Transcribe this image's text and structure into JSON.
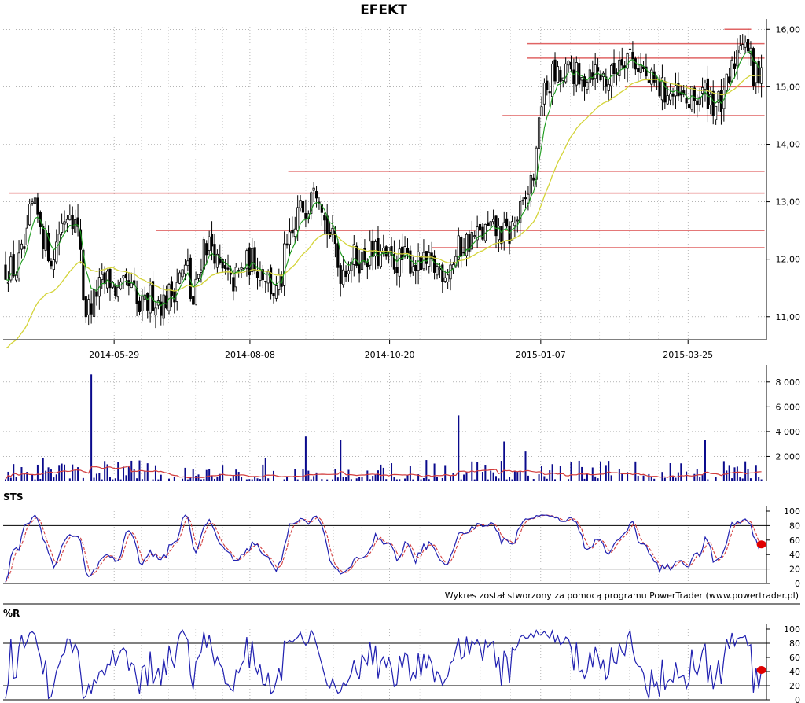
{
  "title": "EFEKT",
  "credit": "Wykres został stworzony za pomocą programu PowerTrader (www.powertrader.pl)",
  "colors": {
    "candle": "#000000",
    "ma_short": "#1a9a1a",
    "ma_long": "#d4d43a",
    "support_resistance": "#e06464",
    "volume_bar": "#0a0a8c",
    "volume_avg": "#d23c3c",
    "sts_k": "#2020b0",
    "sts_d": "#d23c3c",
    "williams": "#2020b0",
    "marker": "#e00000",
    "grid": "#888888"
  },
  "chart_data": [
    {
      "id": "price",
      "type": "candlestick",
      "title": "EFEKT",
      "x_tick_labels": [
        "2014-05-29",
        "2014-08-08",
        "2014-10-20",
        "2015-01-07",
        "2015-03-25"
      ],
      "y_tick_labels": [
        "11,00",
        "12,00",
        "13,00",
        "14,00",
        "15,00",
        "16,00"
      ],
      "ylim": [
        10.6,
        16.1
      ],
      "grid": true,
      "horizontal_levels": [
        {
          "value": 16.0,
          "from": "2015-04-13",
          "to": "2015-04-27"
        },
        {
          "value": 15.75,
          "from": "2014-12-31",
          "to": "2015-05-04"
        },
        {
          "value": 15.5,
          "from": "2014-12-31",
          "to": "2015-05-04"
        },
        {
          "value": 15.0,
          "from": "2015-02-20",
          "to": "2015-05-04"
        },
        {
          "value": 14.5,
          "from": "2014-12-18",
          "to": "2015-05-04"
        },
        {
          "value": 13.53,
          "from": "2014-08-28",
          "to": "2015-05-04"
        },
        {
          "value": 13.15,
          "from": "2014-04-04",
          "to": "2015-05-04"
        },
        {
          "value": 12.5,
          "from": "2014-06-20",
          "to": "2015-05-04"
        },
        {
          "value": 12.2,
          "from": "2014-11-11",
          "to": "2015-05-04"
        }
      ],
      "close_series": [
        [
          "2014-04-01",
          11.85
        ],
        [
          "2014-04-07",
          11.8
        ],
        [
          "2014-04-11",
          12.3
        ],
        [
          "2014-04-15",
          12.9
        ],
        [
          "2014-04-21",
          12.4
        ],
        [
          "2014-04-25",
          11.95
        ],
        [
          "2014-05-01",
          12.75
        ],
        [
          "2014-05-05",
          12.95
        ],
        [
          "2014-05-09",
          12.25
        ],
        [
          "2014-05-13",
          11.1
        ],
        [
          "2014-05-19",
          11.45
        ],
        [
          "2014-05-25",
          11.7
        ],
        [
          "2014-05-29",
          11.4
        ],
        [
          "2014-06-04",
          11.5
        ],
        [
          "2014-06-10",
          11.1
        ],
        [
          "2014-06-16",
          11.35
        ],
        [
          "2014-06-22",
          11.2
        ],
        [
          "2014-06-28",
          11.55
        ],
        [
          "2014-07-04",
          11.85
        ],
        [
          "2014-07-08",
          11.2
        ],
        [
          "2014-07-12",
          12.3
        ],
        [
          "2014-07-17",
          12.25
        ],
        [
          "2014-07-22",
          11.8
        ],
        [
          "2014-07-28",
          11.55
        ],
        [
          "2014-08-02",
          11.85
        ],
        [
          "2014-08-08",
          12.0
        ],
        [
          "2014-08-14",
          11.75
        ],
        [
          "2014-08-20",
          11.4
        ],
        [
          "2014-08-26",
          12.15
        ],
        [
          "2014-08-31",
          12.75
        ],
        [
          "2014-09-05",
          13.0
        ],
        [
          "2014-09-09",
          13.45
        ],
        [
          "2014-09-13",
          12.9
        ],
        [
          "2014-09-18",
          12.3
        ],
        [
          "2014-09-23",
          11.8
        ],
        [
          "2014-09-28",
          12.05
        ],
        [
          "2014-10-03",
          12.0
        ],
        [
          "2014-10-08",
          12.1
        ],
        [
          "2014-10-13",
          12.05
        ],
        [
          "2014-10-20",
          11.95
        ],
        [
          "2014-10-27",
          12.0
        ],
        [
          "2014-11-03",
          11.9
        ],
        [
          "2014-11-10",
          11.85
        ],
        [
          "2014-11-17",
          11.8
        ],
        [
          "2014-11-22",
          12.1
        ],
        [
          "2014-11-27",
          12.3
        ],
        [
          "2014-12-03",
          12.4
        ],
        [
          "2014-12-09",
          12.5
        ],
        [
          "2014-12-15",
          12.45
        ],
        [
          "2014-12-20",
          12.4
        ],
        [
          "2014-12-25",
          12.8
        ],
        [
          "2014-12-29",
          13.0
        ],
        [
          "2015-01-02",
          13.7
        ],
        [
          "2015-01-05",
          14.6
        ],
        [
          "2015-01-08",
          15.0
        ],
        [
          "2015-01-12",
          15.2
        ],
        [
          "2015-01-16",
          15.1
        ],
        [
          "2015-01-21",
          15.3
        ],
        [
          "2015-01-26",
          15.0
        ],
        [
          "2015-01-31",
          15.4
        ],
        [
          "2015-02-05",
          15.2
        ],
        [
          "2015-02-10",
          15.1
        ],
        [
          "2015-02-15",
          15.5
        ],
        [
          "2015-02-20",
          15.6
        ],
        [
          "2015-02-25",
          15.4
        ],
        [
          "2015-03-02",
          15.1
        ],
        [
          "2015-03-07",
          15.0
        ],
        [
          "2015-03-12",
          14.9
        ],
        [
          "2015-03-17",
          14.8
        ],
        [
          "2015-03-22",
          14.7
        ],
        [
          "2015-03-27",
          14.8
        ],
        [
          "2015-04-01",
          14.9
        ],
        [
          "2015-04-06",
          14.7
        ],
        [
          "2015-04-10",
          14.7
        ],
        [
          "2015-04-14",
          15.1
        ],
        [
          "2015-04-18",
          15.8
        ],
        [
          "2015-04-22",
          15.9
        ],
        [
          "2015-04-26",
          15.0
        ],
        [
          "2015-04-30",
          15.4
        ]
      ]
    },
    {
      "id": "volume",
      "type": "bar",
      "y_tick_labels": [
        "2 000",
        "4 000",
        "6 000",
        "8 000"
      ],
      "ylim": [
        0,
        9000
      ],
      "grid": true,
      "notable_bars": [
        [
          "2014-05-15",
          8600
        ],
        [
          "2014-08-31",
          4600
        ],
        [
          "2014-09-04",
          3600
        ],
        [
          "2014-09-23",
          3300
        ],
        [
          "2014-11-24",
          5300
        ],
        [
          "2014-12-17",
          3200
        ],
        [
          "2014-12-29",
          2400
        ],
        [
          "2015-04-01",
          3300
        ]
      ]
    },
    {
      "id": "sts",
      "type": "line",
      "title": "STS",
      "y_tick_labels": [
        "0",
        "20",
        "40",
        "60",
        "80",
        "100"
      ],
      "ylim": [
        0,
        100
      ],
      "reference_lines": [
        20,
        80
      ]
    },
    {
      "id": "williams",
      "type": "line",
      "title": "%R",
      "y_tick_labels": [
        "0",
        "20",
        "40",
        "60",
        "80",
        "100"
      ],
      "ylim": [
        0,
        100
      ],
      "reference_lines": [
        20,
        80
      ]
    }
  ]
}
